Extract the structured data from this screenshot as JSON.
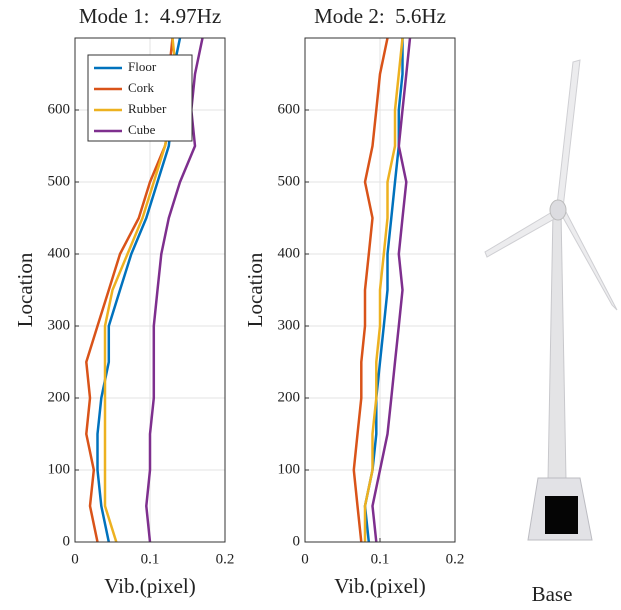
{
  "chart_data": [
    {
      "type": "line",
      "title": "Mode 1:  4.97Hz",
      "xlabel": "Vib.(pixel)",
      "ylabel": "Location",
      "y": [
        0,
        50,
        100,
        150,
        200,
        250,
        300,
        350,
        400,
        450,
        500,
        550,
        600,
        650,
        700
      ],
      "xlim": [
        0,
        0.2
      ],
      "xticks": [
        0,
        0.1,
        0.2
      ],
      "ylim": [
        0,
        700
      ],
      "yticks": [
        0,
        100,
        200,
        300,
        400,
        500,
        600
      ],
      "grid": true,
      "legend": "upper left",
      "series": [
        {
          "name": "Floor",
          "color": "#0072BD",
          "values": [
            0.045,
            0.035,
            0.03,
            0.03,
            0.035,
            0.045,
            0.045,
            0.06,
            0.075,
            0.095,
            0.11,
            0.125,
            0.13,
            0.13,
            0.14
          ]
        },
        {
          "name": "Cork",
          "color": "#D95319",
          "values": [
            0.03,
            0.02,
            0.025,
            0.015,
            0.02,
            0.015,
            0.03,
            0.045,
            0.06,
            0.085,
            0.1,
            0.12,
            0.13,
            0.125,
            0.13
          ]
        },
        {
          "name": "Rubber",
          "color": "#EDB120",
          "values": [
            0.055,
            0.04,
            0.04,
            0.04,
            0.04,
            0.04,
            0.04,
            0.05,
            0.07,
            0.09,
            0.105,
            0.12,
            0.13,
            0.135,
            0.13
          ]
        },
        {
          "name": "Cube",
          "color": "#7E2F8E",
          "values": [
            0.1,
            0.095,
            0.1,
            0.1,
            0.105,
            0.105,
            0.105,
            0.11,
            0.115,
            0.125,
            0.14,
            0.16,
            0.155,
            0.16,
            0.17
          ]
        }
      ]
    },
    {
      "type": "line",
      "title": "Mode 2:  5.6Hz",
      "xlabel": "Vib.(pixel)",
      "ylabel": "Location",
      "y": [
        0,
        50,
        100,
        150,
        200,
        250,
        300,
        350,
        400,
        450,
        500,
        550,
        600,
        650,
        700
      ],
      "xlim": [
        0,
        0.2
      ],
      "xticks": [
        0,
        0.1,
        0.2
      ],
      "ylim": [
        0,
        700
      ],
      "yticks": [
        0,
        100,
        200,
        300,
        400,
        500,
        600
      ],
      "grid": true,
      "series": [
        {
          "color": "#0072BD",
          "values": [
            0.085,
            0.08,
            0.09,
            0.095,
            0.095,
            0.1,
            0.105,
            0.11,
            0.11,
            0.115,
            0.12,
            0.125,
            0.125,
            0.13,
            0.13
          ]
        },
        {
          "color": "#D95319",
          "values": [
            0.075,
            0.07,
            0.065,
            0.07,
            0.075,
            0.075,
            0.08,
            0.08,
            0.085,
            0.09,
            0.08,
            0.09,
            0.095,
            0.1,
            0.11
          ]
        },
        {
          "color": "#EDB120",
          "values": [
            0.08,
            0.08,
            0.09,
            0.09,
            0.095,
            0.095,
            0.1,
            0.1,
            0.105,
            0.11,
            0.11,
            0.12,
            0.12,
            0.125,
            0.13
          ]
        },
        {
          "color": "#7E2F8E",
          "values": [
            0.095,
            0.09,
            0.1,
            0.11,
            0.115,
            0.12,
            0.125,
            0.13,
            0.125,
            0.13,
            0.135,
            0.125,
            0.13,
            0.135,
            0.14
          ]
        }
      ]
    }
  ],
  "image_caption": "Base"
}
